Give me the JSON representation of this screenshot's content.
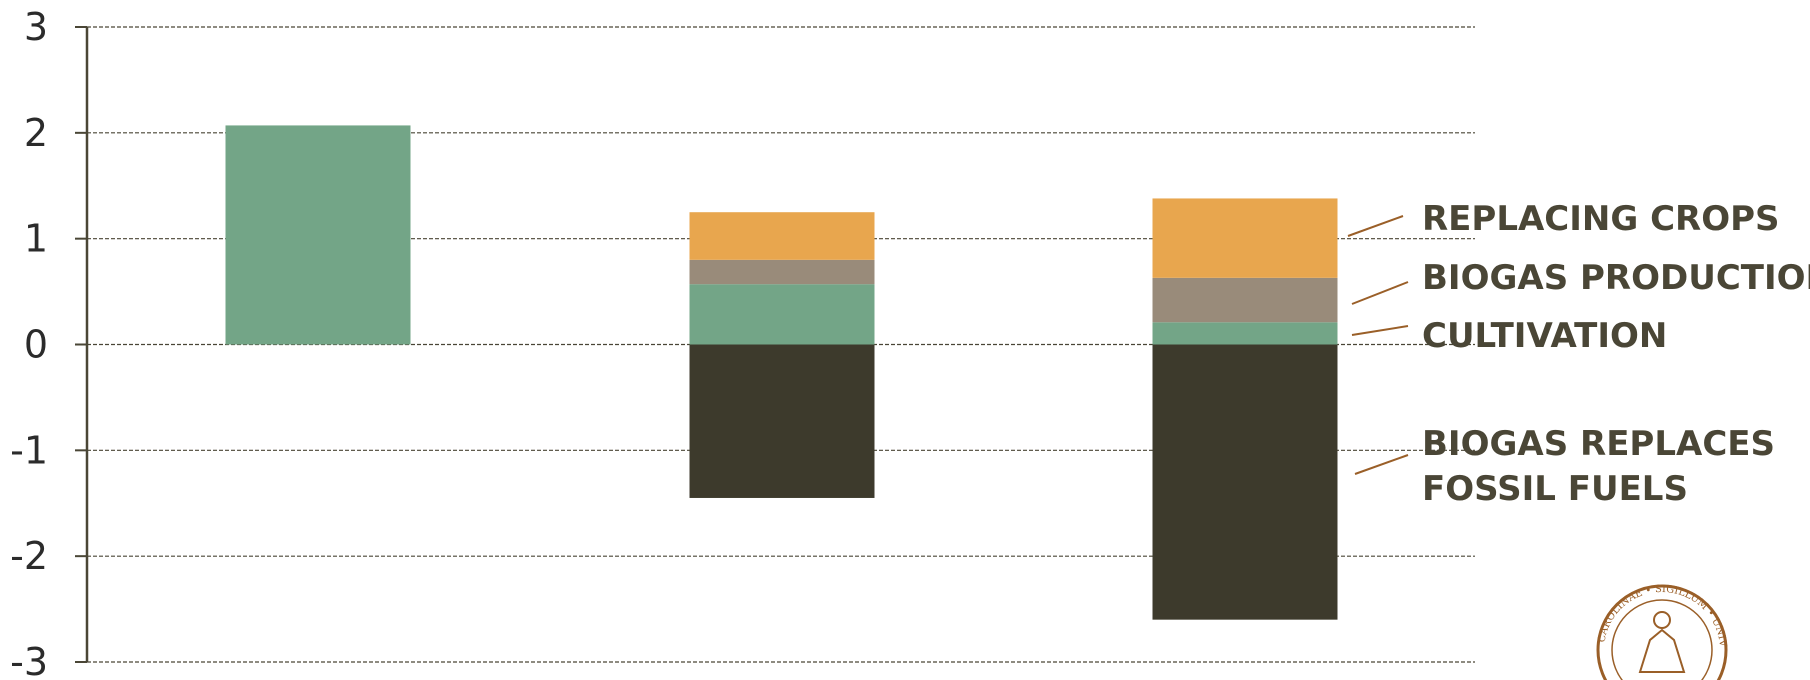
{
  "colors": {
    "cultivation": "#73a587",
    "biogas_production": "#998b7a",
    "replacing_crops": "#e8a64e",
    "fossil": "#3d3a2c",
    "axis": "#4a4636",
    "grid": "#4a4636",
    "leader": "#9a5f28",
    "seal": "#9a5f28"
  },
  "chart_data": {
    "type": "bar",
    "stacked": true,
    "categories": [
      "",
      "",
      ""
    ],
    "ylim": [
      -3,
      3
    ],
    "yticks": [
      3,
      2,
      1,
      0,
      -1,
      -2,
      -3
    ],
    "grid": true,
    "legend_position": "right",
    "xlabel": "",
    "ylabel": "",
    "series": [
      {
        "name": "REPLACING CROPS",
        "color_key": "replacing_crops",
        "values": [
          0,
          0.45,
          0.75
        ]
      },
      {
        "name": "BIOGAS PRODUCTION",
        "color_key": "biogas_production",
        "values": [
          0,
          0.23,
          0.42
        ]
      },
      {
        "name": "CULTIVATION",
        "color_key": "cultivation",
        "values": [
          2.07,
          0.57,
          0.21
        ]
      },
      {
        "name": "BIOGAS REPLACES FOSSIL FUELS",
        "color_key": "fossil",
        "values": [
          0,
          -1.45,
          -2.6
        ]
      }
    ],
    "legend": [
      {
        "lines": [
          "REPLACING CROPS"
        ]
      },
      {
        "lines": [
          "BIOGAS PRODUCTION"
        ]
      },
      {
        "lines": [
          "CULTIVATION"
        ]
      },
      {
        "lines": [
          "BIOGAS REPLACES",
          "FOSSIL FUELS"
        ]
      }
    ]
  },
  "logo": {
    "name": "lund-university-seal-icon",
    "text": "CAROLINAE • SIGILLUM • UNIV • AD • UTRUMQUE"
  }
}
